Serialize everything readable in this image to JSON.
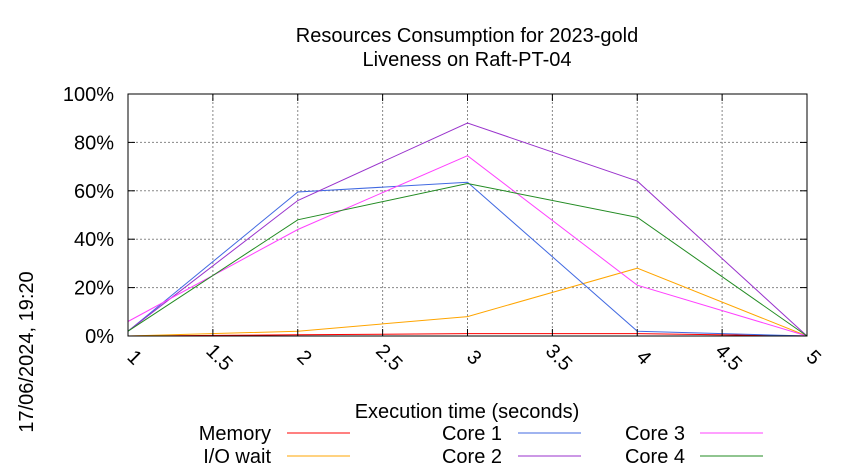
{
  "chart_data": {
    "type": "line",
    "title_line1": "Resources Consumption for 2023-gold",
    "title_line2": "Liveness on Raft-PT-04",
    "xlabel": "Execution time (seconds)",
    "ylabel": "",
    "side_label": "17/06/2024, 19:20",
    "xlim": [
      1,
      5
    ],
    "ylim": [
      0,
      100
    ],
    "x_ticks": [
      1,
      1.5,
      2,
      2.5,
      3,
      3.5,
      4,
      4.5,
      5
    ],
    "x_tick_labels": [
      "1",
      "1.5",
      "2",
      "2.5",
      "3",
      "3.5",
      "4",
      "4.5",
      "5"
    ],
    "y_ticks": [
      0,
      20,
      40,
      60,
      80,
      100
    ],
    "y_tick_labels": [
      "0%",
      "20%",
      "40%",
      "60%",
      "80%",
      "100%"
    ],
    "grid": true,
    "legend_position": "bottom",
    "series": [
      {
        "name": "Memory",
        "color": "#ff0000",
        "x": [
          1,
          2,
          3,
          4,
          5
        ],
        "y": [
          0,
          0.5,
          1,
          1,
          0
        ]
      },
      {
        "name": "I/O wait",
        "color": "#ffa500",
        "x": [
          1,
          2,
          3,
          4,
          5
        ],
        "y": [
          0,
          2,
          8,
          28,
          0
        ]
      },
      {
        "name": "Core 1",
        "color": "#4169e1",
        "x": [
          1,
          2,
          3,
          4,
          5
        ],
        "y": [
          2,
          59.5,
          63.5,
          2,
          0
        ]
      },
      {
        "name": "Core 2",
        "color": "#9932cc",
        "x": [
          1,
          2,
          3,
          4,
          5
        ],
        "y": [
          2,
          56,
          88,
          64,
          0
        ]
      },
      {
        "name": "Core 3",
        "color": "#ff40ff",
        "x": [
          1,
          2,
          3,
          4,
          5
        ],
        "y": [
          6,
          44,
          74.5,
          21,
          0
        ]
      },
      {
        "name": "Core 4",
        "color": "#228b22",
        "x": [
          1,
          2,
          3,
          4,
          5
        ],
        "y": [
          2,
          48,
          63,
          49,
          0
        ]
      }
    ]
  }
}
